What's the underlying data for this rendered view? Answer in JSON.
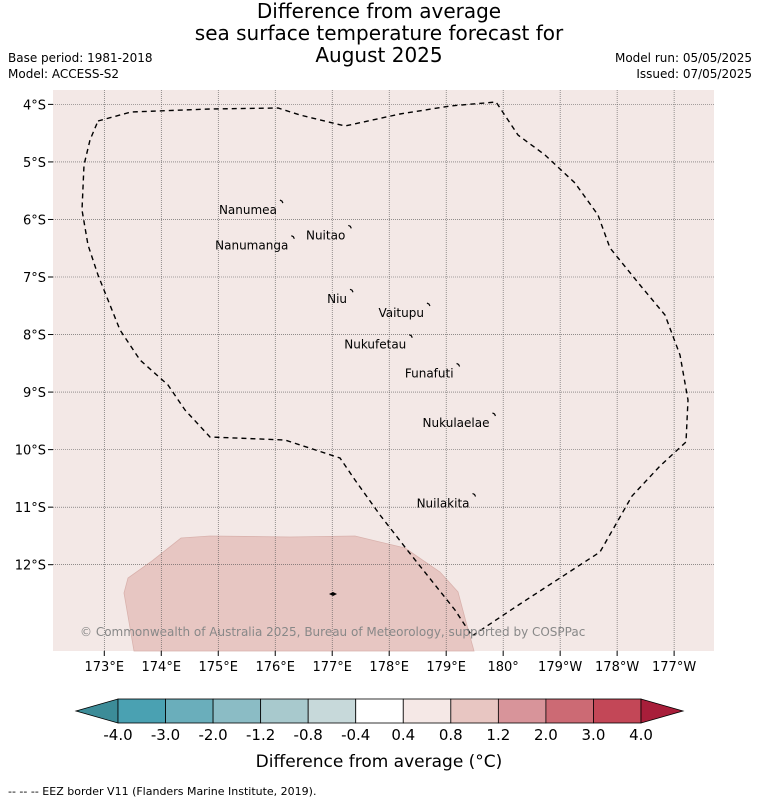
{
  "title": [
    "Difference from average",
    "sea surface temperature forecast for",
    "August 2025"
  ],
  "meta_left": [
    "Base period: 1981-2018",
    "Model: ACCESS-S2"
  ],
  "meta_right": [
    "Model run: 05/05/2025",
    "Issued: 07/05/2025"
  ],
  "colors": {
    "background_anomaly": "#f3e8e6",
    "warm_patch": "#e7c6c2",
    "grid": "#555555"
  },
  "map": {
    "lat_labels": [
      "4°S",
      "5°S",
      "6°S",
      "7°S",
      "8°S",
      "9°S",
      "10°S",
      "11°S",
      "12°S"
    ],
    "lat_values": [
      -4,
      -5,
      -6,
      -7,
      -8,
      -9,
      -10,
      -11,
      -12
    ],
    "lon_labels": [
      "173°E",
      "174°E",
      "175°E",
      "176°E",
      "177°E",
      "178°E",
      "179°E",
      "180°",
      "179°W",
      "178°W",
      "177°W"
    ],
    "lon_values": [
      173,
      174,
      175,
      176,
      177,
      178,
      179,
      180,
      181,
      182,
      183
    ],
    "extent": {
      "lon": [
        172.1,
        183.7
      ],
      "lat": [
        -13.5,
        -3.75
      ]
    },
    "islands": [
      {
        "name": "Nanumea",
        "lon": 176.1,
        "lat": -5.68
      },
      {
        "name": "Nuitao",
        "lon": 177.3,
        "lat": -6.12
      },
      {
        "name": "Nanumanga",
        "lon": 176.3,
        "lat": -6.3
      },
      {
        "name": "Niu",
        "lon": 177.33,
        "lat": -7.23
      },
      {
        "name": "Vaitupu",
        "lon": 178.68,
        "lat": -7.47
      },
      {
        "name": "Nukufetau",
        "lon": 178.37,
        "lat": -8.02
      },
      {
        "name": "Funafuti",
        "lon": 179.2,
        "lat": -8.52
      },
      {
        "name": "Nukulaelae",
        "lon": 179.83,
        "lat": -9.38
      },
      {
        "name": "Nuilakita",
        "lon": 179.48,
        "lat": -10.78
      }
    ],
    "copyright": "© Commonwealth of Australia 2025, Bureau of Meteorology, supported by COSPPac"
  },
  "colorbar": {
    "boundaries": [
      "-4.0",
      "-3.0",
      "-2.0",
      "-1.2",
      "-0.8",
      "-0.4",
      "0.4",
      "0.8",
      "1.2",
      "2.0",
      "3.0",
      "4.0"
    ],
    "colors": [
      "#4aa1b2",
      "#6aaebb",
      "#8bbcc5",
      "#a8c9cd",
      "#c7d9da",
      "#ffffff",
      "#f5e8e6",
      "#e8c6c2",
      "#d8949a",
      "#cc6a74",
      "#c34757"
    ],
    "under_color": "#3c8c98",
    "over_color": "#a81e3a",
    "title": "Difference from average (°C)"
  },
  "footnote": "--  --  -- EEZ border V11 (Flanders Marine Institute, 2019)."
}
